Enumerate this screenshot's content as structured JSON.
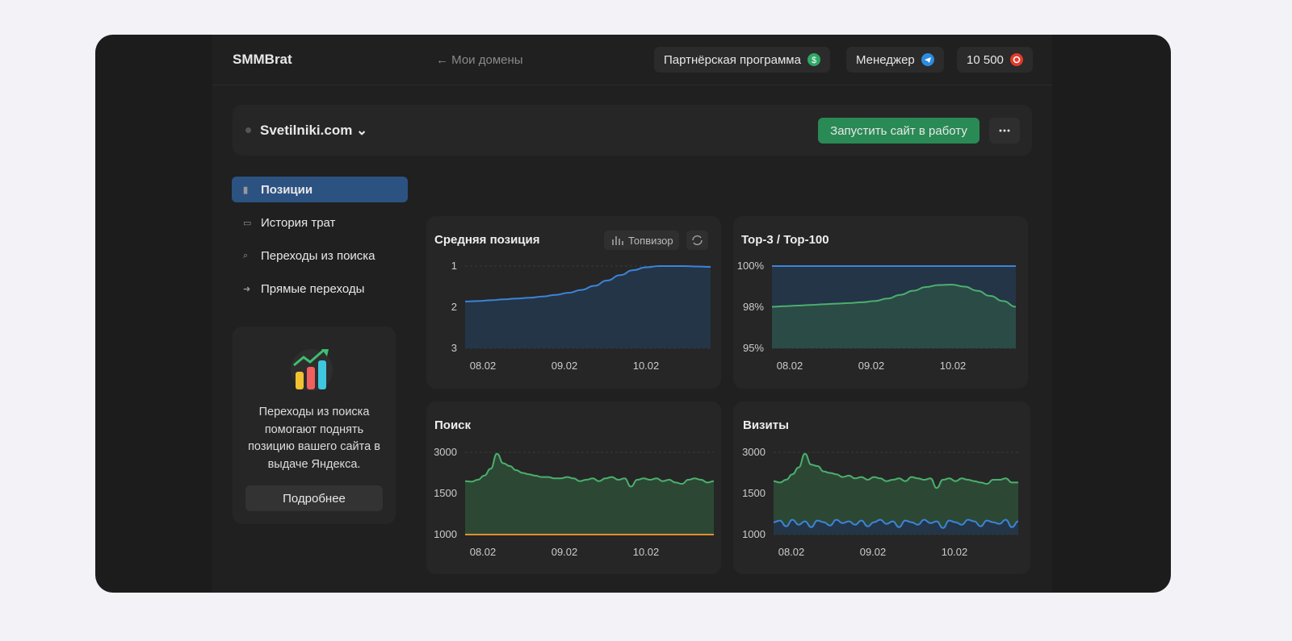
{
  "header": {
    "logo": "SMMBrat",
    "back": "← Мои домены",
    "partner": "Партнёрская программа",
    "manager": "Менеджер",
    "balance": "10 500"
  },
  "site": {
    "domain": "Svetilniki.com",
    "launch": "Запустить сайт в работу"
  },
  "nav": [
    "Позиции",
    "История трат",
    "Переходы из поиска",
    "Прямые переходы"
  ],
  "promo": {
    "text": "Переходы из поиска помогают поднять позицию вашего сайта в выдаче Яндекса.",
    "button": "Подробнее"
  },
  "charts": [
    {
      "type": "area",
      "title": "Средняя позиция",
      "source": "Топвизор",
      "x_labels": [
        "08.02",
        "09.02",
        "10.02"
      ],
      "ylim": [
        3,
        1
      ],
      "yticks": [
        3,
        2,
        1
      ],
      "grid": true,
      "series": [
        {
          "color": "#3b84d8",
          "fill": "#243548",
          "values": [
            1.86,
            1.85,
            1.83,
            1.81,
            1.79,
            1.77,
            1.74,
            1.7,
            1.65,
            1.58,
            1.48,
            1.35,
            1.22,
            1.1,
            1.03,
            1.0,
            1.0,
            1.0,
            1.01,
            1.02
          ]
        }
      ]
    },
    {
      "type": "area",
      "title": "Top-3 / Top-100",
      "x_labels": [
        "08.02",
        "09.02",
        "10.02"
      ],
      "ylim": [
        95,
        100
      ],
      "yticks": [
        {
          "value": 95,
          "label": "95%"
        },
        {
          "value": 98,
          "label": "98%"
        },
        {
          "value": 100,
          "label": "100%"
        }
      ],
      "grid": true,
      "series": [
        {
          "color": "#3b84d8",
          "fill": "#243548",
          "values": [
            100,
            100,
            100,
            100,
            100,
            100,
            100,
            100,
            100,
            100,
            100,
            100,
            100,
            100,
            100,
            100,
            100,
            100,
            100,
            100
          ]
        },
        {
          "color": "#4caf6e",
          "fill": "#2b4b47",
          "values": [
            98.02,
            98.05,
            98.08,
            98.11,
            98.14,
            98.17,
            98.2,
            98.24,
            98.3,
            98.42,
            98.6,
            98.8,
            98.98,
            99.08,
            99.1,
            99.0,
            98.8,
            98.55,
            98.3,
            98.02
          ]
        }
      ]
    },
    {
      "type": "area",
      "title": "Поиск",
      "x_labels": [
        "08.02",
        "09.02",
        "10.02"
      ],
      "ylim": [
        1000,
        3000
      ],
      "yticks": [
        1000,
        1500,
        3000
      ],
      "grid": true,
      "series": [
        {
          "color": "#4caf6e",
          "fill": "#2c4834",
          "values": [
            1950,
            1930,
            2000,
            2150,
            2400,
            2950,
            2600,
            2500,
            2350,
            2250,
            2200,
            2150,
            2100,
            2100,
            2050,
            2050,
            2100,
            2050,
            1950,
            2000,
            2050,
            1950,
            2050,
            2100,
            2000,
            2050,
            1750,
            2000,
            2050,
            2000,
            2050,
            1950,
            2000,
            1900,
            1850,
            2000,
            2050,
            2000,
            1900,
            1950
          ]
        },
        {
          "color": "#e0912b",
          "fill": "none",
          "values": [
            1000,
            1000,
            1000,
            1000,
            1000,
            1000,
            1000,
            1000,
            1000,
            1000,
            1000,
            1000,
            1000,
            1000,
            1000,
            1000,
            1000,
            1000,
            1000,
            1000,
            1000,
            1000,
            1000,
            1000,
            1000,
            1000,
            1000,
            1000,
            1000,
            1000,
            1000,
            1000,
            1000,
            1000,
            1000,
            1000,
            1000,
            1000,
            1000,
            1000
          ]
        }
      ]
    },
    {
      "type": "area",
      "title": "Визиты",
      "x_labels": [
        "08.02",
        "09.02",
        "10.02"
      ],
      "ylim": [
        1000,
        3000
      ],
      "yticks": [
        1000,
        1500,
        3000
      ],
      "grid": true,
      "series": [
        {
          "color": "#4caf6e",
          "fill": "#2c4834",
          "values": [
            1950,
            1900,
            2000,
            2200,
            2450,
            2950,
            2550,
            2500,
            2300,
            2250,
            2200,
            2100,
            2150,
            2050,
            2100,
            2000,
            2100,
            2050,
            1950,
            2000,
            2050,
            1950,
            2100,
            2050,
            2000,
            2050,
            1700,
            2000,
            2050,
            1950,
            2050,
            2000,
            1950,
            1900,
            1850,
            2000,
            2000,
            2050,
            1900,
            1900
          ]
        },
        {
          "color": "#3b84d8",
          "fill": "#243548",
          "values": [
            1150,
            1170,
            1100,
            1180,
            1120,
            1160,
            1090,
            1170,
            1150,
            1110,
            1180,
            1140,
            1160,
            1120,
            1170,
            1100,
            1150,
            1180,
            1130,
            1160,
            1090,
            1170,
            1150,
            1120,
            1180,
            1140,
            1160,
            1080,
            1170,
            1150,
            1120,
            1180,
            1160,
            1100,
            1170,
            1150,
            1130,
            1180,
            1090,
            1160
          ]
        }
      ]
    }
  ]
}
